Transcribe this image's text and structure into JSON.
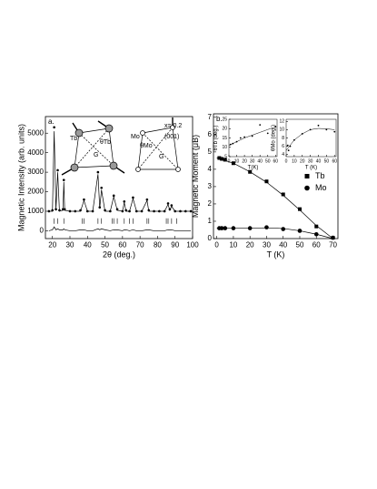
{
  "chart_data": [
    {
      "type": "line",
      "panel_label": "a.",
      "ylabel": "Magnetic Intensity (arb. units)",
      "xlabel": "2θ (deg.)",
      "xlim": [
        16,
        100
      ],
      "ylim": [
        -400,
        5850
      ],
      "xticks": [
        20,
        30,
        40,
        50,
        60,
        70,
        80,
        90,
        100
      ],
      "yticks": [
        0,
        1000,
        2000,
        3000,
        4000,
        5000
      ],
      "annotations": [
        "Tb",
        "Mo",
        "x= 0.2",
        "(001)",
        "G",
        "G",
        "θTb",
        "θMo"
      ],
      "bragg_level": 500,
      "bragg_positions": [
        21,
        23,
        26.5,
        37,
        38,
        46,
        48,
        54,
        55,
        57,
        61,
        64,
        66,
        74,
        75,
        85,
        86,
        88,
        91
      ],
      "series": [
        {
          "marker": "dot",
          "color": "#000000",
          "x": [
            18,
            20,
            21,
            22,
            23,
            24,
            26,
            26.5,
            27,
            30,
            33,
            36,
            38,
            40,
            43,
            46,
            47,
            48,
            50,
            53,
            55,
            57,
            60,
            61,
            62,
            64,
            66,
            68,
            71,
            74,
            75,
            78,
            81,
            84,
            86,
            87,
            88,
            90,
            93,
            96,
            99
          ],
          "values": [
            1000,
            1050,
            5300,
            1100,
            3100,
            1050,
            1100,
            2600,
            1100,
            1000,
            1000,
            1050,
            1600,
            1000,
            1000,
            3000,
            1200,
            2200,
            1050,
            1000,
            1800,
            1100,
            1000,
            1500,
            1050,
            1000,
            1700,
            1000,
            1000,
            1600,
            1050,
            1000,
            1000,
            1000,
            1400,
            1100,
            1300,
            1000,
            1000,
            1000,
            1000
          ]
        },
        {
          "marker": "line",
          "color": "#000000",
          "x": [
            18,
            20,
            21,
            22,
            23,
            24,
            26,
            26.5,
            27,
            30,
            33,
            36,
            38,
            40,
            43,
            46,
            47,
            48,
            50,
            53,
            55,
            57,
            60,
            61,
            62,
            64,
            66,
            68,
            71,
            74,
            75,
            78,
            81,
            84,
            86,
            87,
            88,
            90,
            93,
            96,
            99
          ],
          "values": [
            1000,
            1000,
            5100,
            1050,
            3000,
            1000,
            1050,
            2500,
            1050,
            1000,
            1000,
            1000,
            1550,
            1000,
            1000,
            2900,
            1150,
            2100,
            1000,
            1000,
            1750,
            1050,
            1000,
            1450,
            1000,
            1000,
            1650,
            1000,
            1000,
            1550,
            1000,
            1000,
            1000,
            1000,
            1350,
            1050,
            1250,
            1000,
            1000,
            1000,
            1000
          ]
        },
        {
          "marker": "line",
          "color": "#000000",
          "x": [
            18,
            20,
            21,
            22,
            23,
            24,
            26,
            26.5,
            27,
            30,
            33,
            36,
            38,
            40,
            43,
            46,
            47,
            48,
            50,
            53,
            55,
            57,
            60,
            61,
            62,
            64,
            66,
            68,
            71,
            74,
            75,
            78,
            81,
            84,
            86,
            87,
            88,
            90,
            93,
            96,
            99
          ],
          "values": [
            0,
            50,
            200,
            50,
            100,
            50,
            50,
            100,
            50,
            0,
            0,
            50,
            50,
            0,
            0,
            100,
            50,
            100,
            50,
            0,
            50,
            50,
            0,
            50,
            50,
            0,
            50,
            0,
            0,
            50,
            50,
            0,
            0,
            0,
            50,
            50,
            50,
            0,
            0,
            0,
            0
          ]
        }
      ]
    },
    {
      "type": "line",
      "panel_label": "b.",
      "ylabel": "Magnetic Moment (μB)",
      "xlabel": "T (K)",
      "xlim": [
        -2,
        73
      ],
      "ylim": [
        0,
        7.2
      ],
      "xticks": [
        0,
        10,
        20,
        30,
        40,
        50,
        60,
        70
      ],
      "yticks": [
        0,
        1,
        2,
        3,
        4,
        5,
        6,
        7
      ],
      "legend": "center right",
      "series": [
        {
          "name": "Tb",
          "marker": "square",
          "color": "#000000",
          "x": [
            1.5,
            3,
            5,
            10,
            20,
            30,
            40,
            50,
            60,
            70
          ],
          "values": [
            4.65,
            4.6,
            4.55,
            4.35,
            3.85,
            3.3,
            2.55,
            1.7,
            0.7,
            0.05
          ]
        },
        {
          "name": "Mo",
          "marker": "circle",
          "color": "#000000",
          "x": [
            1.5,
            3,
            5,
            10,
            20,
            30,
            40,
            50,
            60,
            70
          ],
          "values": [
            0.6,
            0.6,
            0.6,
            0.6,
            0.6,
            0.65,
            0.55,
            0.45,
            0.25,
            0.05
          ]
        },
        {
          "marker": "line",
          "color": "#000000",
          "x": [
            0,
            10,
            20,
            30,
            40,
            50,
            60,
            70
          ],
          "values": [
            4.65,
            4.35,
            3.85,
            3.25,
            2.5,
            1.65,
            0.75,
            0
          ]
        },
        {
          "marker": "line",
          "color": "#000000",
          "x": [
            0,
            10,
            20,
            30,
            40,
            50,
            60,
            70
          ],
          "values": [
            0.6,
            0.6,
            0.6,
            0.62,
            0.58,
            0.45,
            0.25,
            0
          ]
        }
      ]
    },
    {
      "type": "line",
      "ylabel": "θTb (deg.)",
      "xlabel": "T(K)",
      "xlim": [
        0,
        62
      ],
      "ylim": [
        5,
        25
      ],
      "xticks": [
        0,
        10,
        20,
        30,
        40,
        50,
        60
      ],
      "yticks": [
        5,
        10,
        15,
        20,
        25
      ],
      "series": [
        {
          "marker": "dot",
          "color": "#000000",
          "x": [
            2,
            5,
            10,
            15,
            20,
            30,
            40,
            50,
            60
          ],
          "values": [
            11.5,
            12,
            13,
            15,
            15.5,
            16,
            22,
            17.5,
            21
          ]
        },
        {
          "marker": "line",
          "color": "#000000",
          "x": [
            0,
            10,
            20,
            30,
            40,
            50,
            60
          ],
          "values": [
            11,
            13,
            15,
            16.5,
            18,
            19.5,
            21
          ]
        }
      ]
    },
    {
      "type": "line",
      "ylabel": "θMo (deg.)",
      "xlabel": "T (K)",
      "xlim": [
        0,
        62
      ],
      "ylim": [
        3.5,
        12.5
      ],
      "xticks": [
        0,
        10,
        20,
        30,
        40,
        50,
        60
      ],
      "yticks": [
        4,
        6,
        8,
        10,
        12
      ],
      "series": [
        {
          "marker": "dot",
          "color": "#000000",
          "x": [
            2,
            3,
            5,
            10,
            20,
            30,
            40,
            50,
            60
          ],
          "values": [
            6.2,
            5,
            6,
            7.5,
            9,
            10,
            11,
            10,
            9.5
          ]
        },
        {
          "marker": "line",
          "color": "#000000",
          "x": [
            0,
            10,
            20,
            30,
            40,
            50,
            60
          ],
          "values": [
            5,
            7.5,
            9,
            10,
            10.3,
            10.2,
            10
          ]
        }
      ]
    }
  ]
}
